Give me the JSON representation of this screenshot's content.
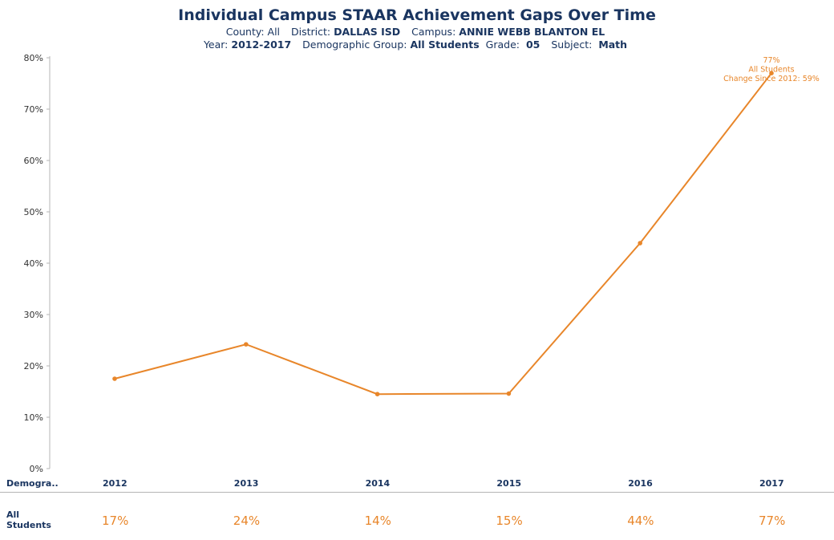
{
  "header": {
    "title": "Individual Campus STAAR Achievement Gaps Over Time",
    "filters": {
      "county_label": "County:",
      "county_value": "All",
      "district_label": "District:",
      "district_value": "DALLAS ISD",
      "campus_label": "Campus:",
      "campus_value": "ANNIE WEBB BLANTON EL",
      "year_label": "Year:",
      "year_value": "2012-2017",
      "demographic_label": "Demographic Group:",
      "demographic_value": "All Students",
      "grade_label": "Grade:",
      "grade_value": "05",
      "subject_label": "Subject:",
      "subject_value": "Math"
    }
  },
  "colors": {
    "accent": "#e8862a",
    "text": "#1a3560",
    "axis": "#b5b5b5"
  },
  "chart_data": {
    "type": "line",
    "categories": [
      "2012",
      "2013",
      "2014",
      "2015",
      "2016",
      "2017"
    ],
    "series": [
      {
        "name": "All Students",
        "values": [
          17.5,
          24.2,
          14.5,
          14.6,
          43.9,
          77
        ],
        "color": "#e8862a"
      }
    ],
    "ylim": [
      0,
      80
    ],
    "yticks": [
      "0%",
      "10%",
      "20%",
      "30%",
      "40%",
      "50%",
      "60%",
      "70%",
      "80%"
    ],
    "annotation": [
      "77%",
      "All Students",
      "Change Since 2012: 59%"
    ],
    "grid": false
  },
  "table": {
    "header_label": "Demogra..",
    "rows": [
      {
        "label_line1": "All",
        "label_line2": "Students",
        "values": [
          "17%",
          "24%",
          "14%",
          "15%",
          "44%",
          "77%"
        ]
      }
    ]
  }
}
